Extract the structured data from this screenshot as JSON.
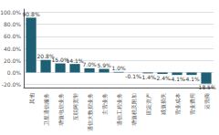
{
  "chart_data": {
    "type": "bar",
    "categories": [
      "其他",
      "卫星通信服务",
      "增值电信业务",
      "互联网宽带",
      "通信大数据业务",
      "主营业务",
      "通信工程业务",
      "增值税及附加",
      "固定资产",
      "减值损失",
      "营业成本",
      "营业费用",
      "运营商"
    ],
    "values": [
      90.8,
      20.8,
      15.0,
      14.1,
      7.0,
      5.9,
      1.0,
      -0.1,
      -1.4,
      -2.4,
      -4.1,
      -4.1,
      -18.5
    ],
    "value_labels": [
      "90.8%",
      "20.8%",
      "15.0%",
      "14.1%",
      "7.0%",
      "5.9%",
      "1.0%",
      "-0.1%",
      "-1.4%",
      "-2.4%",
      "-4.1%",
      "-4.1%",
      "-18.5%"
    ],
    "data_labels": true,
    "color": "#1e5f74",
    "ylim": [
      -25.0,
      105.0
    ],
    "yticks": [
      {
        "value": -20.0,
        "label": "-20.0%"
      },
      {
        "value": 0.0,
        "label": "0.0%"
      },
      {
        "value": 20.0,
        "label": "20.0%"
      },
      {
        "value": 40.0,
        "label": "40.0%"
      },
      {
        "value": 60.0,
        "label": "60.0%"
      },
      {
        "value": 80.0,
        "label": "80.0%"
      },
      {
        "value": 100.0,
        "label": "100.0%"
      }
    ],
    "grid": true
  }
}
